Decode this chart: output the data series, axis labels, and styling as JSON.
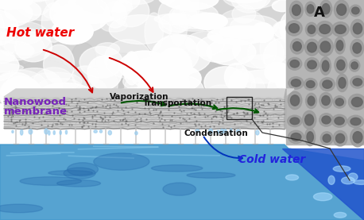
{
  "title_label": "A",
  "labels": {
    "hot_water": "Hot water",
    "vaporization": "Vaporization",
    "nanowood_line1": "Nanowood",
    "nanowood_line2": "membrane",
    "transportation": "Transportation",
    "condensation": "Condensation",
    "cold_water": "Cold water"
  },
  "colors": {
    "hot_water_text": "#ee0000",
    "nanowood_text": "#7722bb",
    "vaporization_text": "#111111",
    "transportation_text": "#111111",
    "condensation_text": "#111111",
    "cold_water_text": "#2222dd",
    "red_arrow": "#cc0000",
    "green_arrow": "#005500",
    "blue_arrow": "#0033bb",
    "background": "#ffffff",
    "cloud_base": "#e0e0e0",
    "cloud_white": "#f8f8f8",
    "membrane_face": "#c8c8c8",
    "membrane_top": "#d8d8d8",
    "membrane_right": "#a0a0a0",
    "pore_bg": "#b8b8b8",
    "pore_dark": "#888888",
    "water_mid": "#3399dd",
    "water_dark": "#1a5faa",
    "water_light": "#88ccee",
    "water_right_bg": "#2255bb",
    "water_right_light": "#aaddff"
  },
  "figsize": [
    4.58,
    2.77
  ],
  "dpi": 100
}
